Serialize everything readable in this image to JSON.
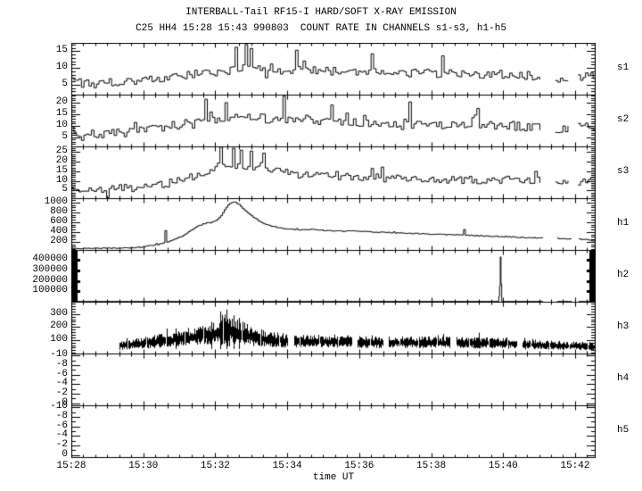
{
  "header": {
    "title": "INTERBALL-Tail RF15-I HARD/SOFT X-RAY EMISSION",
    "subtitle": "C25 HH4 15:28 15:43 990803  COUNT RATE IN CHANNELS s1-s3, h1-h5"
  },
  "chart_data": {
    "type": "line",
    "title": "INTERBALL-Tail RF15-I HARD/SOFT X-RAY EMISSION",
    "subtitle": "C25 HH4 15:28 15:43 990803  COUNT RATE IN CHANNELS s1-s3, h1-h5",
    "xlabel": "time UT",
    "x_range": [
      0,
      14.57
    ],
    "x_tick_step_minutes": 2,
    "x_minor_step": 0.3333,
    "x_ticks": [
      {
        "t": 0,
        "label": "15:28"
      },
      {
        "t": 2,
        "label": "15:30"
      },
      {
        "t": 4,
        "label": "15:32"
      },
      {
        "t": 6,
        "label": "15:34"
      },
      {
        "t": 8,
        "label": "15:36"
      },
      {
        "t": 10,
        "label": "15:38"
      },
      {
        "t": 12,
        "label": "15:40"
      },
      {
        "t": 14,
        "label": "15:42"
      }
    ],
    "grid": false,
    "legend": "none",
    "panels": [
      {
        "label": "s1",
        "style": "step",
        "ylim": [
          2,
          17.5
        ],
        "yticks": [
          5,
          10,
          15
        ],
        "y_minor_step": 1,
        "tick_weight": 1,
        "dt": 0.07,
        "noise": 1.3,
        "seed": 101,
        "segments": [
          [
            0,
            13.05
          ],
          [
            13.45,
            13.85
          ],
          [
            14.08,
            14.57
          ]
        ],
        "mean": [
          [
            0,
            6.3
          ],
          [
            0.3,
            5.2
          ],
          [
            0.6,
            5.8
          ],
          [
            1.0,
            5.6
          ],
          [
            1.4,
            6.2
          ],
          [
            1.8,
            6.0
          ],
          [
            2.2,
            6.6
          ],
          [
            2.6,
            7.0
          ],
          [
            3.0,
            7.4
          ],
          [
            3.4,
            8.0
          ],
          [
            3.8,
            8.4
          ],
          [
            4.2,
            9.0
          ],
          [
            4.6,
            9.6
          ],
          [
            5.0,
            9.8
          ],
          [
            5.4,
            9.4
          ],
          [
            6.0,
            9.2
          ],
          [
            6.6,
            9.4
          ],
          [
            7.2,
            9.0
          ],
          [
            7.8,
            9.2
          ],
          [
            8.4,
            9.0
          ],
          [
            9.0,
            8.8
          ],
          [
            9.6,
            8.4
          ],
          [
            10.2,
            8.2
          ],
          [
            10.8,
            8.4
          ],
          [
            11.4,
            8.2
          ],
          [
            12.0,
            8.0
          ],
          [
            12.6,
            7.8
          ],
          [
            13.05,
            7.2
          ],
          [
            13.45,
            6.8
          ],
          [
            13.85,
            7.6
          ],
          [
            14.08,
            7.0
          ],
          [
            14.57,
            8.0
          ]
        ],
        "spikes": [
          [
            4.55,
            16.2
          ],
          [
            4.8,
            17.0
          ],
          [
            4.95,
            15.8
          ],
          [
            6.2,
            15.3
          ],
          [
            8.35,
            14.2
          ],
          [
            10.3,
            13.6
          ]
        ]
      },
      {
        "label": "s2",
        "style": "step",
        "ylim": [
          1,
          23.5
        ],
        "yticks": [
          5,
          10,
          15,
          20
        ],
        "y_minor_step": 1,
        "tick_weight": 1,
        "dt": 0.07,
        "noise": 2.0,
        "seed": 202,
        "segments": [
          [
            0,
            13.05
          ],
          [
            13.45,
            13.85
          ],
          [
            14.08,
            14.57
          ]
        ],
        "mean": [
          [
            0,
            7.8
          ],
          [
            0.3,
            5.0
          ],
          [
            0.6,
            6.5
          ],
          [
            1.0,
            6.3
          ],
          [
            1.5,
            7.0
          ],
          [
            2.0,
            8.0
          ],
          [
            2.5,
            9.2
          ],
          [
            3.0,
            10.5
          ],
          [
            3.5,
            12.0
          ],
          [
            4.0,
            13.0
          ],
          [
            4.5,
            13.5
          ],
          [
            5.0,
            13.2
          ],
          [
            5.5,
            13.0
          ],
          [
            6.0,
            12.5
          ],
          [
            6.5,
            12.0
          ],
          [
            7.0,
            11.6
          ],
          [
            7.5,
            11.3
          ],
          [
            8.0,
            11.0
          ],
          [
            8.5,
            11.2
          ],
          [
            9.0,
            11.0
          ],
          [
            9.5,
            10.8
          ],
          [
            10.0,
            10.5
          ],
          [
            10.5,
            10.6
          ],
          [
            11.0,
            10.4
          ],
          [
            11.5,
            10.2
          ],
          [
            12.0,
            10.0
          ],
          [
            12.5,
            9.8
          ],
          [
            13.05,
            9.0
          ],
          [
            13.45,
            8.8
          ],
          [
            13.85,
            9.6
          ],
          [
            14.08,
            9.0
          ],
          [
            14.57,
            10.0
          ]
        ],
        "spikes": [
          [
            3.7,
            21.5
          ],
          [
            4.25,
            20.0
          ],
          [
            5.9,
            22.8
          ],
          [
            7.2,
            19.0
          ],
          [
            9.4,
            20.3
          ],
          [
            11.3,
            17.5
          ]
        ]
      },
      {
        "label": "s3",
        "style": "step",
        "ylim": [
          1,
          28
        ],
        "yticks": [
          5,
          10,
          15,
          20,
          25
        ],
        "y_minor_step": 1,
        "tick_weight": 1,
        "dt": 0.07,
        "noise": 2.0,
        "seed": 303,
        "segments": [
          [
            0,
            13.05
          ],
          [
            13.45,
            13.85
          ],
          [
            14.08,
            14.57
          ]
        ],
        "mean": [
          [
            0,
            5.0
          ],
          [
            0.5,
            4.6
          ],
          [
            1.0,
            5.0
          ],
          [
            1.4,
            6.8
          ],
          [
            1.8,
            5.8
          ],
          [
            2.2,
            6.8
          ],
          [
            2.6,
            8.5
          ],
          [
            3.0,
            10.5
          ],
          [
            3.4,
            12.5
          ],
          [
            3.8,
            14.5
          ],
          [
            4.2,
            17.0
          ],
          [
            4.5,
            18.0
          ],
          [
            4.8,
            17.5
          ],
          [
            5.1,
            17.0
          ],
          [
            5.4,
            16.0
          ],
          [
            5.8,
            14.5
          ],
          [
            6.2,
            13.5
          ],
          [
            6.6,
            13.0
          ],
          [
            7.0,
            12.6
          ],
          [
            7.5,
            12.2
          ],
          [
            8.0,
            12.0
          ],
          [
            8.5,
            11.6
          ],
          [
            9.0,
            11.2
          ],
          [
            9.5,
            11.4
          ],
          [
            10.0,
            10.8
          ],
          [
            10.5,
            10.4
          ],
          [
            11.0,
            10.4
          ],
          [
            11.5,
            10.6
          ],
          [
            12.0,
            10.6
          ],
          [
            12.5,
            10.2
          ],
          [
            13.05,
            10.0
          ],
          [
            13.45,
            9.6
          ],
          [
            13.85,
            10.4
          ],
          [
            14.08,
            9.8
          ],
          [
            14.57,
            10.6
          ]
        ],
        "spikes": [
          [
            4.1,
            27.6
          ],
          [
            4.45,
            27.0
          ],
          [
            4.7,
            26.0
          ],
          [
            5.0,
            25.5
          ],
          [
            5.3,
            24.5
          ],
          [
            8.3,
            16.5
          ],
          [
            8.6,
            17.2
          ],
          [
            12.9,
            15.0
          ]
        ]
      },
      {
        "label": "h1",
        "style": "step",
        "ylim": [
          35,
          1090
        ],
        "yticks": [
          200,
          400,
          600,
          800,
          1000
        ],
        "y_minor_step": 50,
        "tick_weight": 1,
        "dt": 0.05,
        "noise": 9,
        "seed": 404,
        "segments": [
          [
            0,
            13.1
          ],
          [
            13.5,
            13.9
          ],
          [
            14.1,
            14.57
          ]
        ],
        "mean": [
          [
            0,
            65
          ],
          [
            0.5,
            68
          ],
          [
            1.0,
            70
          ],
          [
            1.5,
            75
          ],
          [
            2.0,
            95
          ],
          [
            2.3,
            140
          ],
          [
            2.55,
            175
          ],
          [
            2.7,
            210
          ],
          [
            2.9,
            260
          ],
          [
            3.1,
            330
          ],
          [
            3.3,
            430
          ],
          [
            3.5,
            520
          ],
          [
            3.7,
            575
          ],
          [
            3.9,
            600
          ],
          [
            4.05,
            660
          ],
          [
            4.15,
            740
          ],
          [
            4.25,
            850
          ],
          [
            4.35,
            950
          ],
          [
            4.45,
            1010
          ],
          [
            4.55,
            1000
          ],
          [
            4.65,
            960
          ],
          [
            4.75,
            880
          ],
          [
            4.9,
            790
          ],
          [
            5.05,
            700
          ],
          [
            5.2,
            630
          ],
          [
            5.35,
            575
          ],
          [
            5.5,
            530
          ],
          [
            5.7,
            495
          ],
          [
            5.9,
            470
          ],
          [
            6.1,
            455
          ],
          [
            6.4,
            445
          ],
          [
            6.7,
            458
          ],
          [
            6.9,
            440
          ],
          [
            7.2,
            425
          ],
          [
            7.5,
            415
          ],
          [
            7.8,
            420
          ],
          [
            8.1,
            410
          ],
          [
            8.4,
            400
          ],
          [
            8.7,
            395
          ],
          [
            9.0,
            385
          ],
          [
            9.3,
            378
          ],
          [
            9.6,
            370
          ],
          [
            9.9,
            360
          ],
          [
            10.2,
            352
          ],
          [
            10.5,
            345
          ],
          [
            10.8,
            340
          ],
          [
            11.1,
            332
          ],
          [
            11.4,
            322
          ],
          [
            11.7,
            315
          ],
          [
            12.0,
            308
          ],
          [
            12.3,
            298
          ],
          [
            12.6,
            288
          ],
          [
            13.1,
            278
          ],
          [
            13.5,
            268
          ],
          [
            13.9,
            262
          ],
          [
            14.1,
            255
          ],
          [
            14.35,
            240
          ],
          [
            14.57,
            215
          ]
        ],
        "spikes": [
          [
            2.6,
            430
          ],
          [
            10.9,
            450
          ]
        ]
      },
      {
        "label": "h2",
        "style": "step",
        "ylim": [
          0,
          497000
        ],
        "yticks": [
          100000,
          200000,
          300000,
          400000
        ],
        "y_minor_step": 20000,
        "tick_weight": 3,
        "dt": 0.02,
        "noise": 0,
        "seed": 505,
        "segments": [
          [
            0,
            13.1
          ],
          [
            13.5,
            13.9
          ],
          [
            14.1,
            14.57
          ]
        ],
        "mean": [
          [
            0,
            2500
          ],
          [
            11.87,
            2500
          ],
          [
            11.9,
            150000
          ],
          [
            11.92,
            430000
          ],
          [
            11.94,
            170000
          ],
          [
            11.96,
            2500
          ],
          [
            14.57,
            2500
          ]
        ],
        "spikes": []
      },
      {
        "label": "h3",
        "style": "band",
        "ylim": [
          -5,
          395
        ],
        "yticks": [
          100,
          200,
          300
        ],
        "y_minor_step": 20,
        "tick_weight": 1,
        "dt": 0.026,
        "noise": 0,
        "seed": 606,
        "segments": [
          [
            1.34,
            6.0
          ],
          [
            6.2,
            7.8
          ],
          [
            7.95,
            8.67
          ],
          [
            8.82,
            10.53
          ],
          [
            10.7,
            12.37
          ],
          [
            12.54,
            14.57
          ]
        ],
        "mean": [
          [
            1.34,
            55
          ],
          [
            1.8,
            70
          ],
          [
            2.3,
            85
          ],
          [
            2.8,
            100
          ],
          [
            3.3,
            120
          ],
          [
            3.8,
            140
          ],
          [
            4.1,
            160
          ],
          [
            4.25,
            185
          ],
          [
            4.45,
            170
          ],
          [
            4.7,
            150
          ],
          [
            5.0,
            125
          ],
          [
            5.4,
            105
          ],
          [
            5.8,
            95
          ],
          [
            6.2,
            90
          ],
          [
            6.8,
            88
          ],
          [
            7.4,
            85
          ],
          [
            7.95,
            82
          ],
          [
            8.3,
            80
          ],
          [
            8.67,
            80
          ],
          [
            8.82,
            82
          ],
          [
            9.5,
            80
          ],
          [
            10.5,
            78
          ],
          [
            10.7,
            76
          ],
          [
            11.5,
            74
          ],
          [
            12.37,
            72
          ],
          [
            12.54,
            65
          ],
          [
            13.5,
            58
          ],
          [
            14.0,
            52
          ],
          [
            14.57,
            50
          ]
        ],
        "amp": [
          [
            1.34,
            30
          ],
          [
            2.3,
            45
          ],
          [
            3.3,
            55
          ],
          [
            4.1,
            80
          ],
          [
            4.25,
            130
          ],
          [
            4.45,
            110
          ],
          [
            4.7,
            90
          ],
          [
            5.0,
            65
          ],
          [
            5.8,
            50
          ],
          [
            6.5,
            45
          ],
          [
            8.0,
            40
          ],
          [
            10.0,
            40
          ],
          [
            12.0,
            38
          ],
          [
            13.0,
            32
          ],
          [
            14.57,
            28
          ]
        ],
        "spikes": [
          [
            2.9,
            190
          ],
          [
            3.9,
            240
          ],
          [
            4.15,
            320
          ],
          [
            4.3,
            335
          ],
          [
            4.5,
            290
          ],
          [
            4.65,
            270
          ]
        ]
      },
      {
        "label": "h4",
        "style": "empty",
        "ylim": [
          0.45,
          -10.45
        ],
        "yticks": [
          -10,
          -8,
          -6,
          -4,
          -2,
          0
        ],
        "y_minor_step": 1,
        "tick_weight": 1,
        "dt": 0.1,
        "noise": 0,
        "seed": 707,
        "segments": [],
        "mean": [],
        "spikes": []
      },
      {
        "label": "h5",
        "style": "empty",
        "ylim": [
          0.45,
          -10.45
        ],
        "yticks": [
          -10,
          -8,
          -6,
          -4,
          -2,
          0
        ],
        "y_minor_step": 1,
        "tick_weight": 1,
        "dt": 0.1,
        "noise": 0,
        "seed": 808,
        "segments": [],
        "mean": [],
        "spikes": []
      }
    ],
    "colors": {
      "foreground": "#000000",
      "background": "#ffffff"
    }
  }
}
